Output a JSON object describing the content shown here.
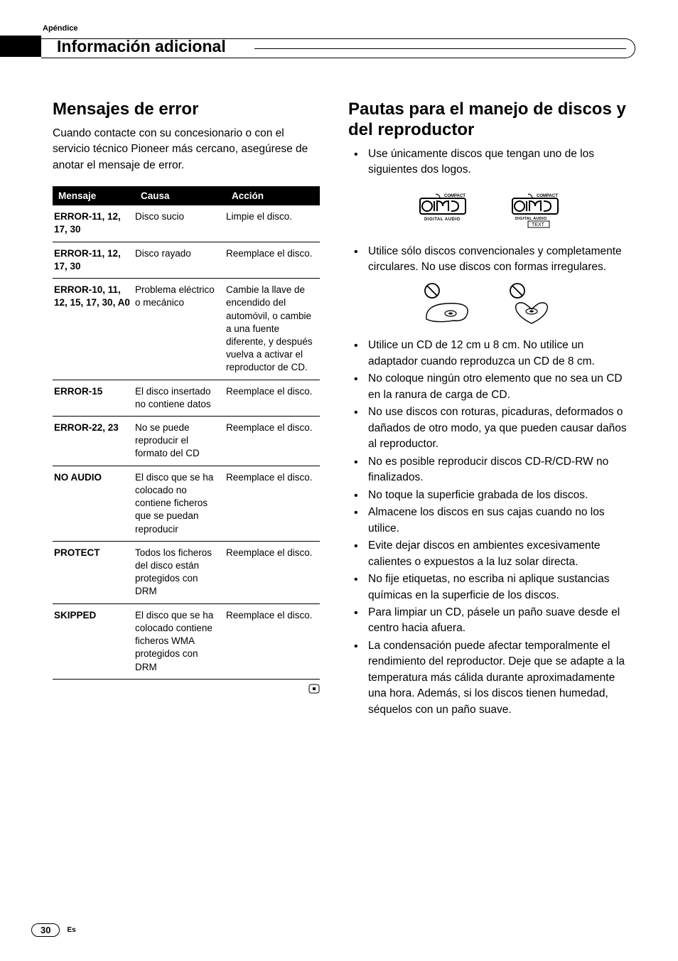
{
  "header": {
    "appendix": "Apéndice",
    "section": "Información adicional"
  },
  "left": {
    "title": "Mensajes de error",
    "intro": "Cuando contacte con su concesionario o con el servicio técnico Pioneer más cercano, asegúrese de anotar el mensaje de error.",
    "columns": {
      "c1": "Mensaje",
      "c2": "Causa",
      "c3": "Acción"
    },
    "rows": [
      {
        "msg": "ERROR-11, 12, 17, 30",
        "cause": "Disco sucio",
        "action": "Limpie el disco."
      },
      {
        "msg": "ERROR-11, 12, 17, 30",
        "cause": "Disco rayado",
        "action": "Reemplace el disco."
      },
      {
        "msg": "ERROR-10, 11, 12, 15, 17, 30, A0",
        "cause": "Problema eléctrico o mecánico",
        "action": "Cambie la llave de encendido del automóvil, o cambie a una fuente diferente, y después vuelva a activar el reproductor de CD."
      },
      {
        "msg": "ERROR-15",
        "cause": "El disco insertado no contiene datos",
        "action": "Reemplace el disco."
      },
      {
        "msg": "ERROR-22, 23",
        "cause": "No se puede reproducir el formato del CD",
        "action": "Reemplace el disco."
      },
      {
        "msg": "NO AUDIO",
        "cause": "El disco que se ha colocado no contiene ficheros que se puedan reproducir",
        "action": "Reemplace el disco."
      },
      {
        "msg": "PROTECT",
        "cause": "Todos los ficheros del disco están protegidos con DRM",
        "action": "Reemplace el disco."
      },
      {
        "msg": "SKIPPED",
        "cause": "El disco que se ha colocado contiene ficheros WMA protegidos con DRM",
        "action": "Reemplace el disco."
      }
    ]
  },
  "right": {
    "title": "Pautas para el manejo de discos y del reproductor",
    "b1": "Use únicamente discos que tengan uno de los siguientes dos logos.",
    "logos": {
      "compact": "COMPACT",
      "digital_audio": "DIGITAL AUDIO",
      "text": "TEXT"
    },
    "b2": "Utilice sólo discos convencionales y completamente circulares. No use discos con formas irregulares.",
    "bullets_rest": [
      "Utilice un CD de 12 cm u 8 cm. No utilice un adaptador cuando reproduzca un CD de 8 cm.",
      "No coloque ningún otro elemento que no sea un CD en la ranura de carga de CD.",
      "No use discos con roturas, picaduras, deformados o dañados de otro modo, ya que pueden causar daños al reproductor.",
      "No es posible reproducir discos CD-R/CD-RW no finalizados.",
      "No toque la superficie grabada de los discos.",
      "Almacene los discos en sus cajas cuando no los utilice.",
      "Evite dejar discos en ambientes excesivamente calientes o expuestos a la luz solar directa.",
      "No fije etiquetas, no escriba ni aplique sustancias químicas en la superficie de los discos.",
      "Para limpiar un CD, pásele un paño suave desde el centro hacia afuera.",
      "La condensación puede afectar temporalmente el rendimiento del reproductor. Deje que se adapte a la temperatura más cálida durante aproximadamente una hora. Además, si los discos tienen humedad, séquelos con un paño suave."
    ]
  },
  "footer": {
    "page": "30",
    "lang": "Es"
  },
  "colors": {
    "black": "#000000",
    "white": "#ffffff"
  }
}
